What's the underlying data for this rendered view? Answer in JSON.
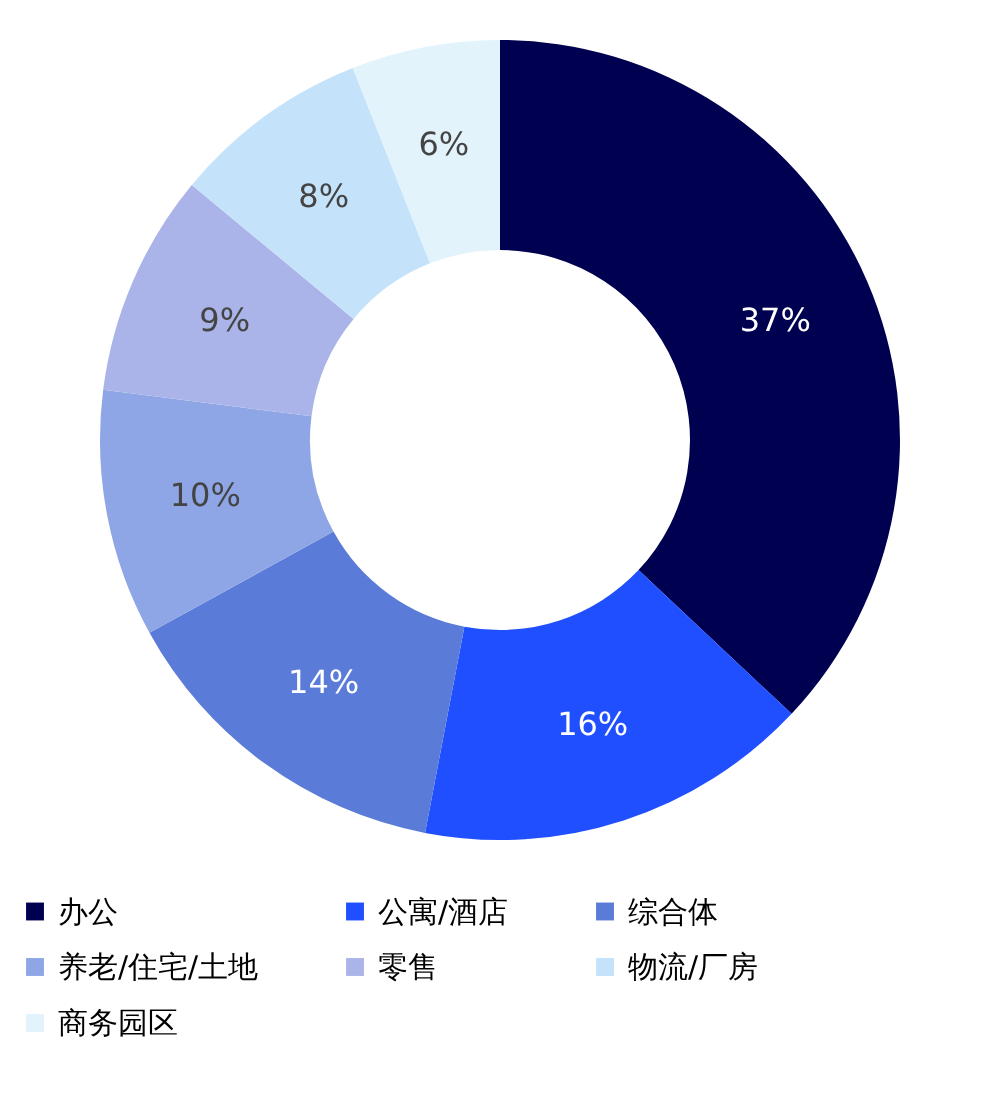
{
  "chart_data": {
    "type": "donut",
    "categories": [
      "办公",
      "公寓/酒店",
      "综合体",
      "养老/住宅/土地",
      "零售",
      "物流/厂房",
      "商务园区"
    ],
    "values": [
      37,
      16,
      14,
      10,
      9,
      8,
      6
    ],
    "colors": [
      "#000050",
      "#1f4fff",
      "#5a7bd8",
      "#8ea6e6",
      "#aab4e8",
      "#c4e3fb",
      "#e2f3fb"
    ],
    "value_labels": [
      "37%",
      "16%",
      "14%",
      "10%",
      "9%",
      "8%",
      "6%"
    ],
    "legend": "bottom"
  }
}
